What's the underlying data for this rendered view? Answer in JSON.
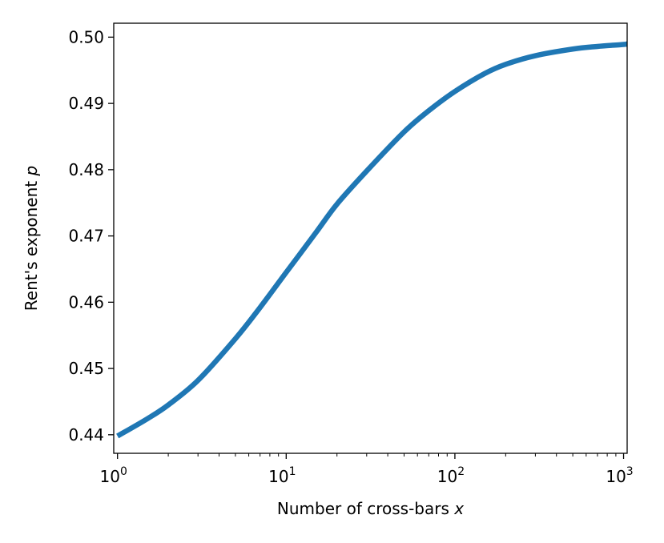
{
  "chart_data": {
    "type": "line",
    "title": "",
    "xlabel": "Number of cross-bars",
    "xlabel_var": "x",
    "ylabel": "Rent's exponent",
    "ylabel_var": "p",
    "xscale": "log",
    "xlim": [
      0.95,
      1050
    ],
    "ylim": [
      0.4372,
      0.5021
    ],
    "grid": false,
    "legend": "none",
    "line_color": "#1f77b4",
    "x_ticks": [
      {
        "value": 1,
        "base": "10",
        "exp": "0"
      },
      {
        "value": 10,
        "base": "10",
        "exp": "1"
      },
      {
        "value": 100,
        "base": "10",
        "exp": "2"
      },
      {
        "value": 1000,
        "base": "10",
        "exp": "3"
      }
    ],
    "y_ticks": [
      {
        "value": 0.44,
        "label": "0.44"
      },
      {
        "value": 0.45,
        "label": "0.45"
      },
      {
        "value": 0.46,
        "label": "0.46"
      },
      {
        "value": 0.47,
        "label": "0.47"
      },
      {
        "value": 0.48,
        "label": "0.48"
      },
      {
        "value": 0.49,
        "label": "0.49"
      },
      {
        "value": 0.5,
        "label": "0.50"
      }
    ],
    "series": [
      {
        "x": [
          1,
          1.5,
          2,
          3,
          5,
          7,
          10,
          15,
          20,
          30,
          50,
          70,
          100,
          150,
          200,
          300,
          500,
          700,
          1000,
          1050
        ],
        "values": [
          0.4398,
          0.4424,
          0.4445,
          0.4482,
          0.4545,
          0.4592,
          0.4645,
          0.4705,
          0.4748,
          0.4798,
          0.4857,
          0.4889,
          0.4918,
          0.4945,
          0.4959,
          0.4972,
          0.4982,
          0.4986,
          0.4989,
          0.499
        ]
      }
    ]
  }
}
